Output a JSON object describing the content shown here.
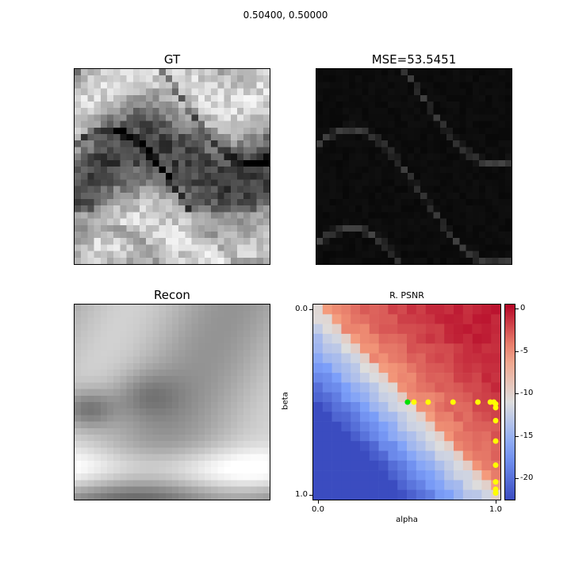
{
  "suptitle": "0.50400, 0.50000",
  "panels": {
    "gt": {
      "title": "GT"
    },
    "mse": {
      "title": "MSE=53.5451"
    },
    "recon": {
      "title": "Recon"
    },
    "psnr": {
      "title": "R. PSNR"
    }
  },
  "chart_data": [
    {
      "type": "heatmap",
      "title": "GT",
      "colormap": "gray",
      "grid_size": [
        30,
        30
      ],
      "description_of_values": "grayscale texture, light wavy bands separated by dark curving streaks"
    },
    {
      "type": "heatmap",
      "title": "MSE=53.5451",
      "colormap": "gray",
      "grid_size": [
        30,
        30
      ],
      "description_of_values": "mostly black error map with faint gray curving traces"
    },
    {
      "type": "heatmap",
      "title": "Recon",
      "colormap": "gray",
      "grid_size": [
        30,
        30
      ],
      "description_of_values": "blurred reconstruction, dark left-middle region, bright lower band"
    },
    {
      "type": "heatmap",
      "title": "R. PSNR",
      "colormap": "coolwarm",
      "xlabel": "alpha",
      "ylabel": "beta",
      "x_ticks": [
        "0.0",
        "1.0"
      ],
      "y_ticks": [
        "0.0",
        "1.0"
      ],
      "xlim": [
        0.0,
        1.0
      ],
      "ylim": [
        0.0,
        1.0
      ],
      "grid_size": [
        20,
        20
      ],
      "colorbar": {
        "ticks": [
          0,
          -5,
          -10,
          -15,
          -20
        ],
        "range": [
          -22.5,
          0.5
        ]
      },
      "marked_points": {
        "current": {
          "alpha": 0.504,
          "beta": 0.5,
          "color": "#00e000"
        },
        "trajectory": {
          "color": "#ffff00",
          "points": [
            [
              0.54,
              0.5
            ],
            [
              0.62,
              0.5
            ],
            [
              0.76,
              0.5
            ],
            [
              0.9,
              0.5
            ],
            [
              0.97,
              0.5
            ],
            [
              0.99,
              0.5
            ],
            [
              1.0,
              0.51
            ],
            [
              1.0,
              0.53
            ],
            [
              1.0,
              0.6
            ],
            [
              1.0,
              0.71
            ],
            [
              1.0,
              0.84
            ],
            [
              1.0,
              0.93
            ],
            [
              1.0,
              0.97
            ],
            [
              1.0,
              0.99
            ]
          ]
        }
      }
    }
  ],
  "colors": {
    "colormap_low": "#3b4cc0",
    "colormap_mid": "#dddddd",
    "colormap_high": "#b40426",
    "current_point": "#00e000",
    "trajectory_point": "#ffff00"
  }
}
